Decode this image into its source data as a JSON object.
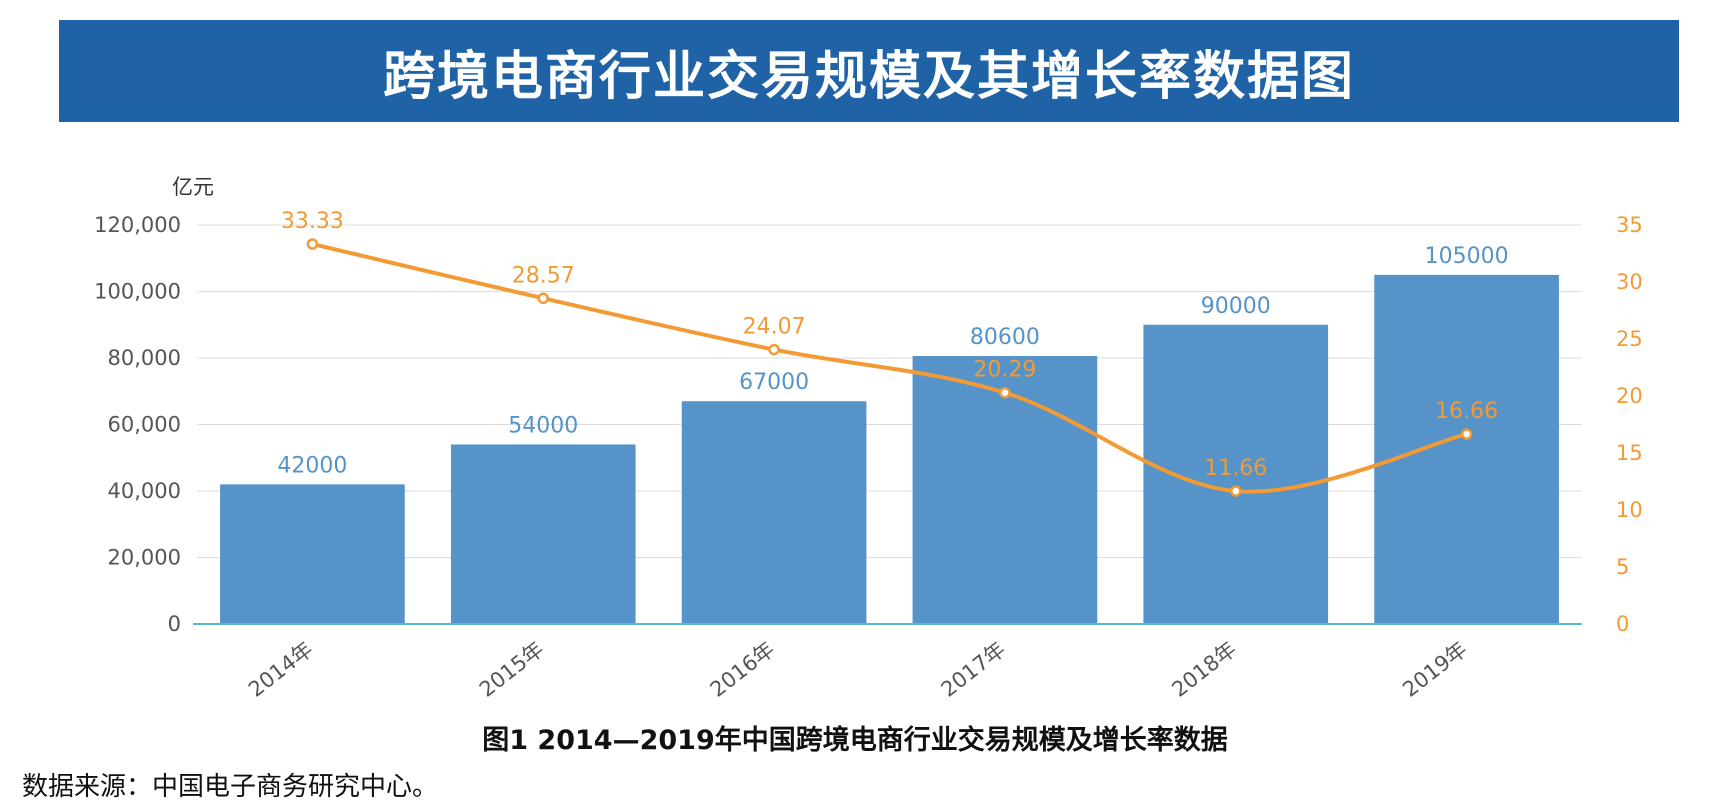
{
  "banner": {
    "title": "跨境电商行业交易规模及其增长率数据图"
  },
  "caption": "图1  2014—2019年中国跨境电商行业交易规模及增长率数据",
  "source": "数据来源：中国电子商务研究中心。",
  "colors": {
    "bar": "#5593c8",
    "line": "#f39a35",
    "banner": "#1f63a6",
    "axis_left": "#555555",
    "axis_right": "#f39a35",
    "baseline": "#5ab8d4"
  },
  "chart_data": {
    "type": "bar",
    "categories": [
      "2014年",
      "2015年",
      "2016年",
      "2017年",
      "2018年",
      "2019年"
    ],
    "left_unit": "亿元",
    "ylim": [
      0,
      120000
    ],
    "y_ticks": [
      "0",
      "20,000",
      "40,000",
      "60,000",
      "80,000",
      "100,000",
      "120,000"
    ],
    "y2lim": [
      0,
      35
    ],
    "y2_ticks": [
      "0",
      "5",
      "10",
      "15",
      "20",
      "25",
      "30",
      "35"
    ],
    "grid": true,
    "series": [
      {
        "type": "bar",
        "values": [
          42000,
          54000,
          67000,
          80600,
          90000,
          105000
        ],
        "labels": [
          "42000",
          "54000",
          "67000",
          "80600",
          "90000",
          "105000"
        ]
      },
      {
        "type": "line",
        "axis": "right",
        "values": [
          33.33,
          28.57,
          24.07,
          20.29,
          11.66,
          16.66
        ],
        "labels": [
          "33.33",
          "28.57",
          "24.07",
          "20.29",
          "11.66",
          "16.66"
        ]
      }
    ]
  }
}
